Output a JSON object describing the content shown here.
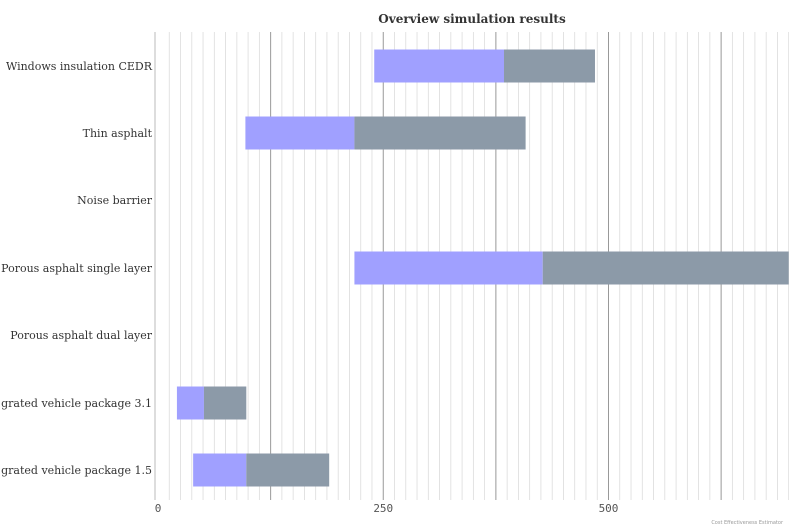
{
  "chart_data": {
    "type": "bar",
    "orientation": "horizontal",
    "stacked": true,
    "title": "Overview simulation results",
    "xlabel": "",
    "ylabel": "",
    "xlim": [
      0,
      700
    ],
    "x_ticks": [
      0,
      250,
      500
    ],
    "grid": true,
    "legend": "none",
    "colors": {
      "segment1": "#a0a0ff",
      "segment2": "#8c9aa8",
      "grid": "#cccccc"
    },
    "categories": [
      "Windows insulation CEDR",
      "Thin asphalt",
      "Noise barrier",
      "Porous asphalt single layer",
      "Porous asphalt dual layer",
      "grated vehicle package 3.1",
      "grated vehicle package 1.5"
    ],
    "bars": [
      {
        "start": 240,
        "segments": [
          384,
          485
        ]
      },
      {
        "start": 97,
        "segments": [
          218,
          408
        ]
      },
      null,
      {
        "start": 218,
        "segments": [
          427,
          700
        ]
      },
      null,
      {
        "start": 21,
        "segments": [
          51,
          98
        ]
      },
      {
        "start": 39,
        "segments": [
          98,
          190
        ]
      }
    ]
  },
  "footer": "Cost Effectiveness Estimator"
}
